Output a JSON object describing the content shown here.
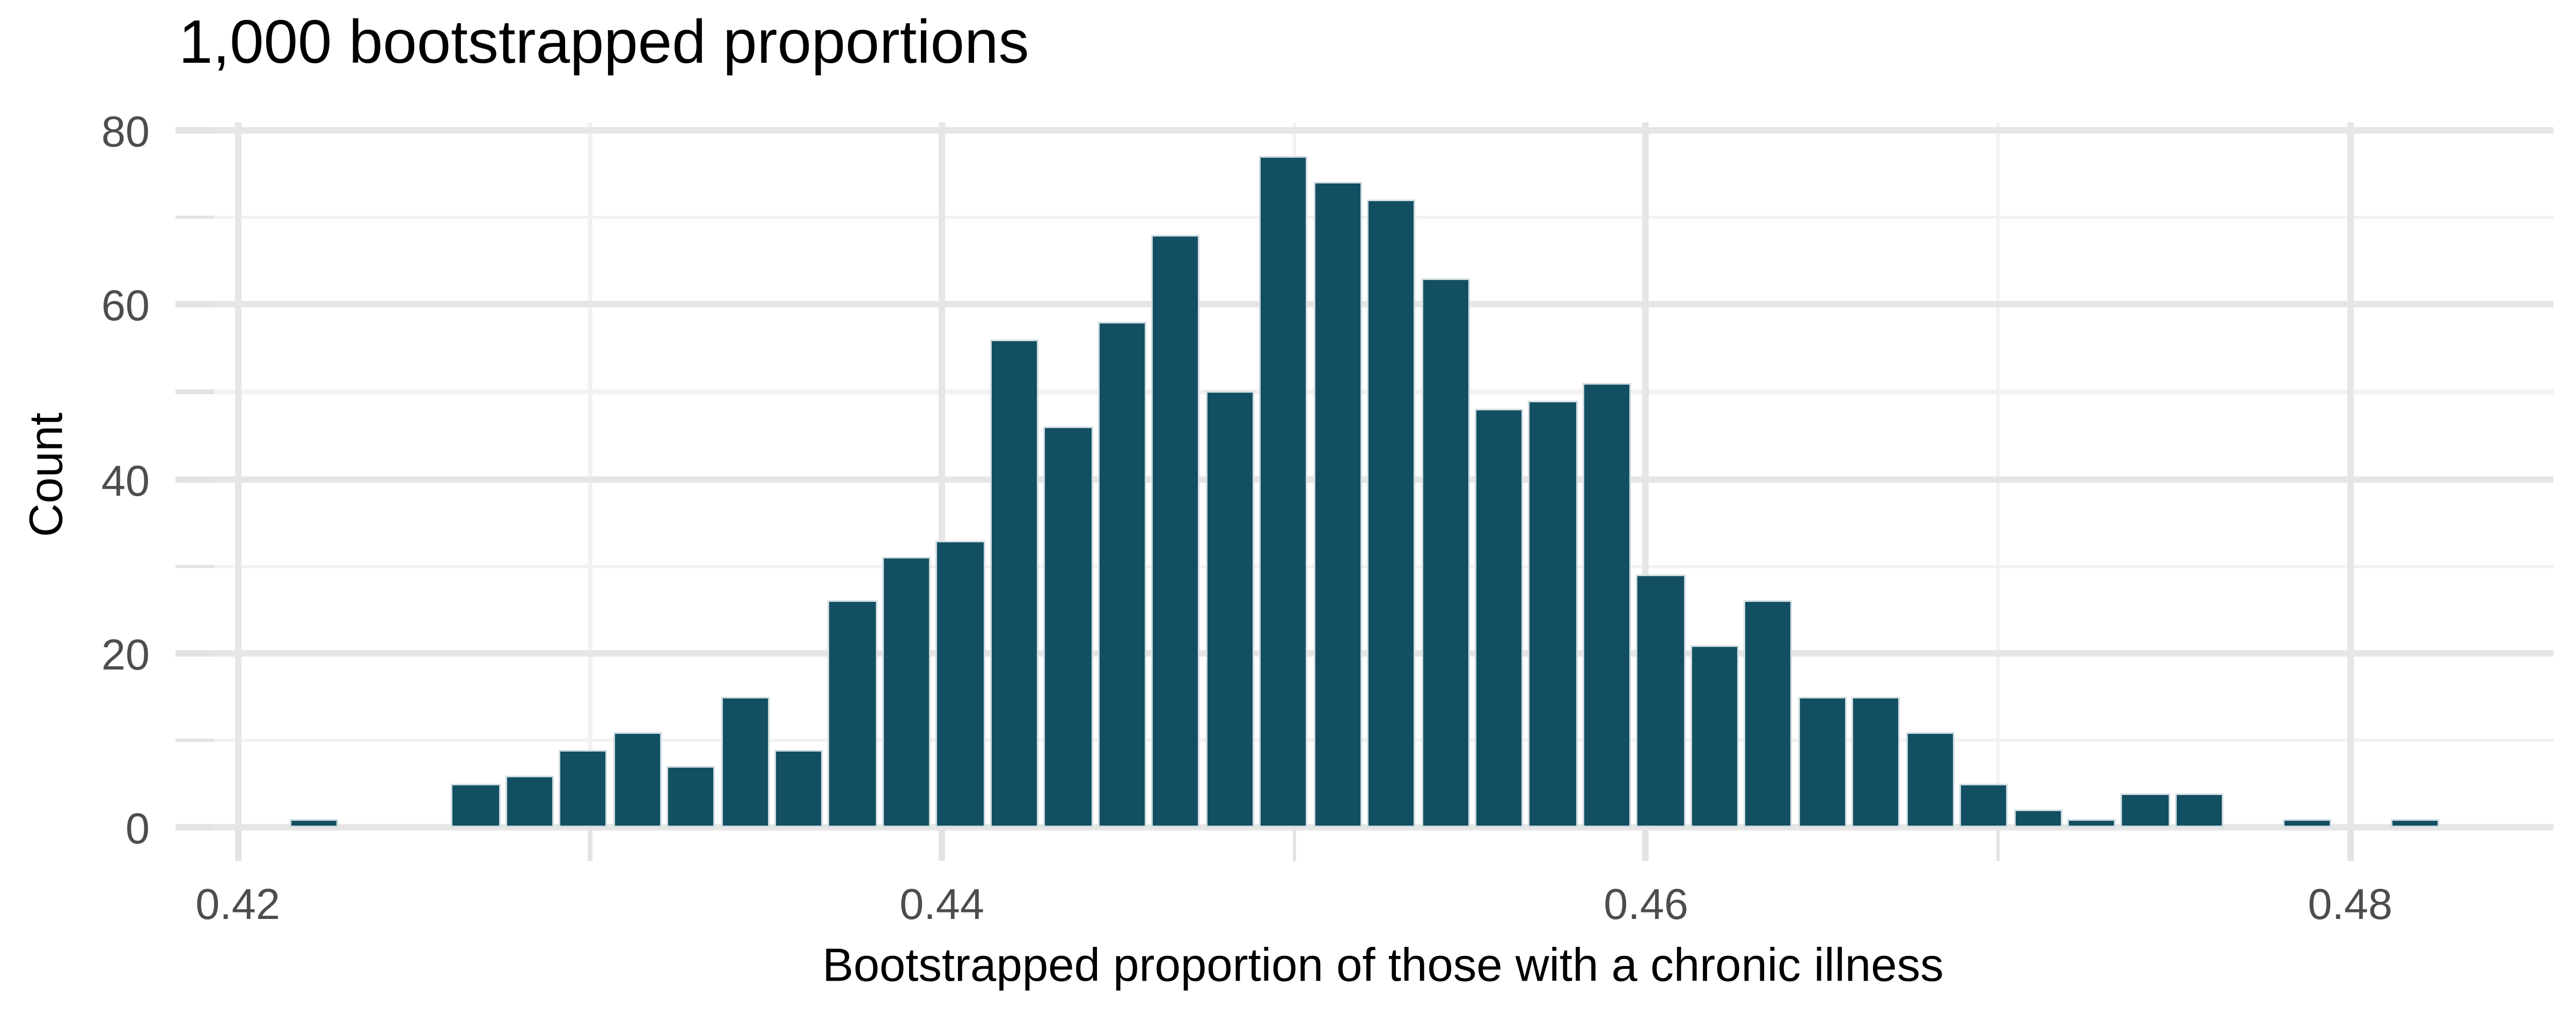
{
  "figure": {
    "title": "1,000 bootstrapped proportions",
    "x_axis_title": "Bootstrapped proportion of those with a chronic illness",
    "y_axis_title": "Count"
  },
  "chart_data": {
    "type": "histogram",
    "title": "1,000 bootstrapped proportions",
    "xlabel": "Bootstrapped proportion of those with a chronic illness",
    "ylabel": "Count",
    "total_count": 1000,
    "bin_start": 0.4214,
    "bin_width": 0.00153,
    "counts": [
      1,
      0,
      0,
      5,
      6,
      9,
      11,
      7,
      15,
      9,
      26,
      31,
      33,
      56,
      46,
      58,
      68,
      50,
      77,
      74,
      72,
      63,
      48,
      49,
      51,
      29,
      21,
      26,
      15,
      15,
      11,
      5,
      2,
      1,
      4,
      4,
      0,
      1,
      0,
      1
    ],
    "x_ticks": [
      {
        "value": 0.42,
        "label": "0.42"
      },
      {
        "value": 0.44,
        "label": "0.44"
      },
      {
        "value": 0.46,
        "label": "0.46"
      },
      {
        "value": 0.48,
        "label": "0.48"
      }
    ],
    "x_minor_ticks": [
      0.43,
      0.45,
      0.47
    ],
    "y_ticks": [
      {
        "value": 0,
        "label": "0"
      },
      {
        "value": 20,
        "label": "20"
      },
      {
        "value": 40,
        "label": "40"
      },
      {
        "value": 60,
        "label": "60"
      },
      {
        "value": 80,
        "label": "80"
      }
    ],
    "y_minor_ticks": [
      10,
      30,
      50,
      70
    ],
    "xlim": [
      0.4193,
      0.4858
    ],
    "ylim": [
      0,
      80
    ],
    "grid": "major+minor",
    "legend": false
  },
  "colors": {
    "bar_fill": "#134f63",
    "bar_stroke": "#ffffff",
    "background": "#ffffff",
    "grid_major": "#e6e6e6",
    "grid_minor": "#f2f2f2",
    "tick_mark": "#e3e3e3",
    "tick_label": "#4d4d4d",
    "title_text": "#000000",
    "axis_title_text": "#000000"
  }
}
